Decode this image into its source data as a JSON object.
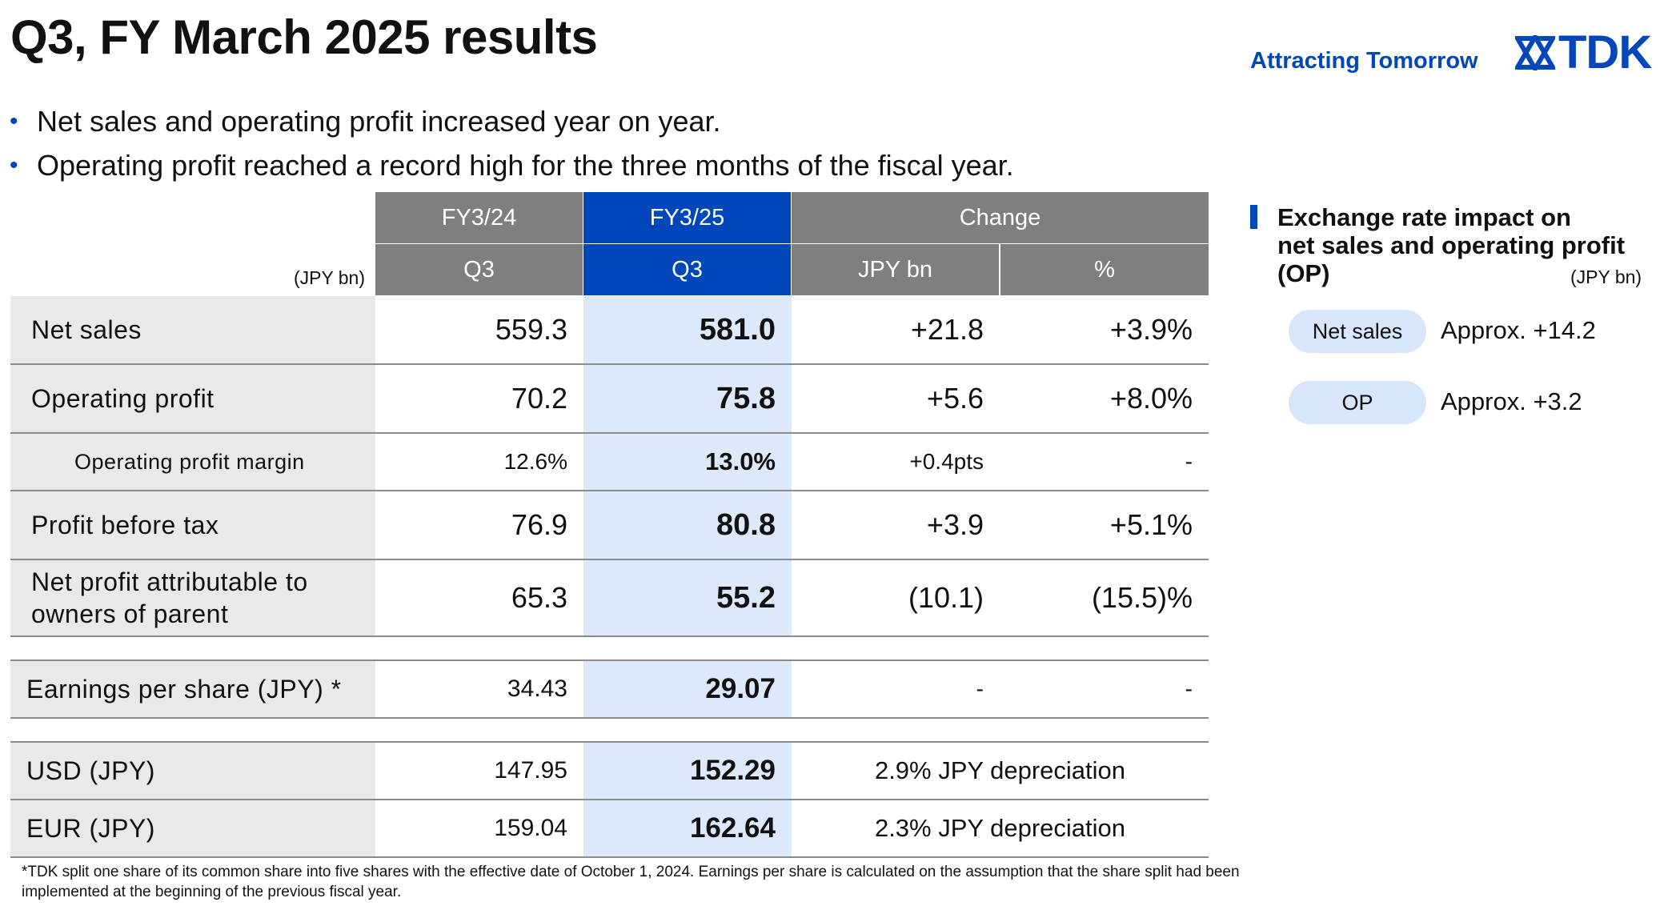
{
  "page": {
    "title": "Q3, FY March 2025 results",
    "tagline": "Attracting Tomorrow",
    "logo_text": "TDK"
  },
  "bullets": [
    "Net sales and operating profit increased year on year.",
    "Operating profit reached a record high for the three months of the fiscal year."
  ],
  "table": {
    "unit": "(JPY bn)",
    "header_top": [
      "FY3/24",
      "FY3/25",
      "Change"
    ],
    "header_sub": [
      "Q3",
      "Q3",
      "JPY bn",
      "%"
    ],
    "rows": [
      {
        "label": "Net sales",
        "fy24": "559.3",
        "fy25": "581.0",
        "chg": "+21.8",
        "pct": "+3.9%"
      },
      {
        "label": "Operating profit",
        "fy24": "70.2",
        "fy25": "75.8",
        "chg": "+5.6",
        "pct": "+8.0%"
      },
      {
        "label": "Operating profit margin",
        "fy24": "12.6%",
        "fy25": "13.0%",
        "chg": "+0.4pts",
        "pct": "-"
      },
      {
        "label": "Profit before tax",
        "fy24": "76.9",
        "fy25": "80.8",
        "chg": "+3.9",
        "pct": "+5.1%"
      },
      {
        "label_line1": "Net profit attributable to",
        "label_line2": "owners of parent",
        "fy24": "65.3",
        "fy25": "55.2",
        "chg": "(10.1)",
        "pct": "(15.5)%"
      },
      {
        "label": "Earnings per share (JPY) *",
        "fy24": "34.43",
        "fy25": "29.07",
        "chg": "-",
        "pct": "-"
      },
      {
        "label": "USD (JPY)",
        "fy24": "147.95",
        "fy25": "152.29",
        "change_text": "2.9% JPY depreciation"
      },
      {
        "label": "EUR (JPY)",
        "fy24": "159.04",
        "fy25": "162.64",
        "change_text": "2.3% JPY depreciation"
      }
    ]
  },
  "side": {
    "title_line1": "Exchange rate impact on",
    "title_line2": "net sales and operating profit",
    "title_line3": "(OP)",
    "unit": "(JPY bn)",
    "items": [
      {
        "pill": "Net sales",
        "value": "Approx. +14.2"
      },
      {
        "pill": "OP",
        "value": "Approx. +3.2"
      }
    ]
  },
  "footnote": {
    "line1": "*TDK split one share of its common share into five shares with the effective date of October 1, 2024. Earnings per share is calculated on the assumption that the share split had been",
    "line2": "implemented at the beginning of the previous fiscal year."
  },
  "colors": {
    "brand_blue": "#0047bb",
    "header_gray": "#7f7f7f",
    "highlight_column": "#dce9fb",
    "label_column": "#e9e9e9"
  }
}
